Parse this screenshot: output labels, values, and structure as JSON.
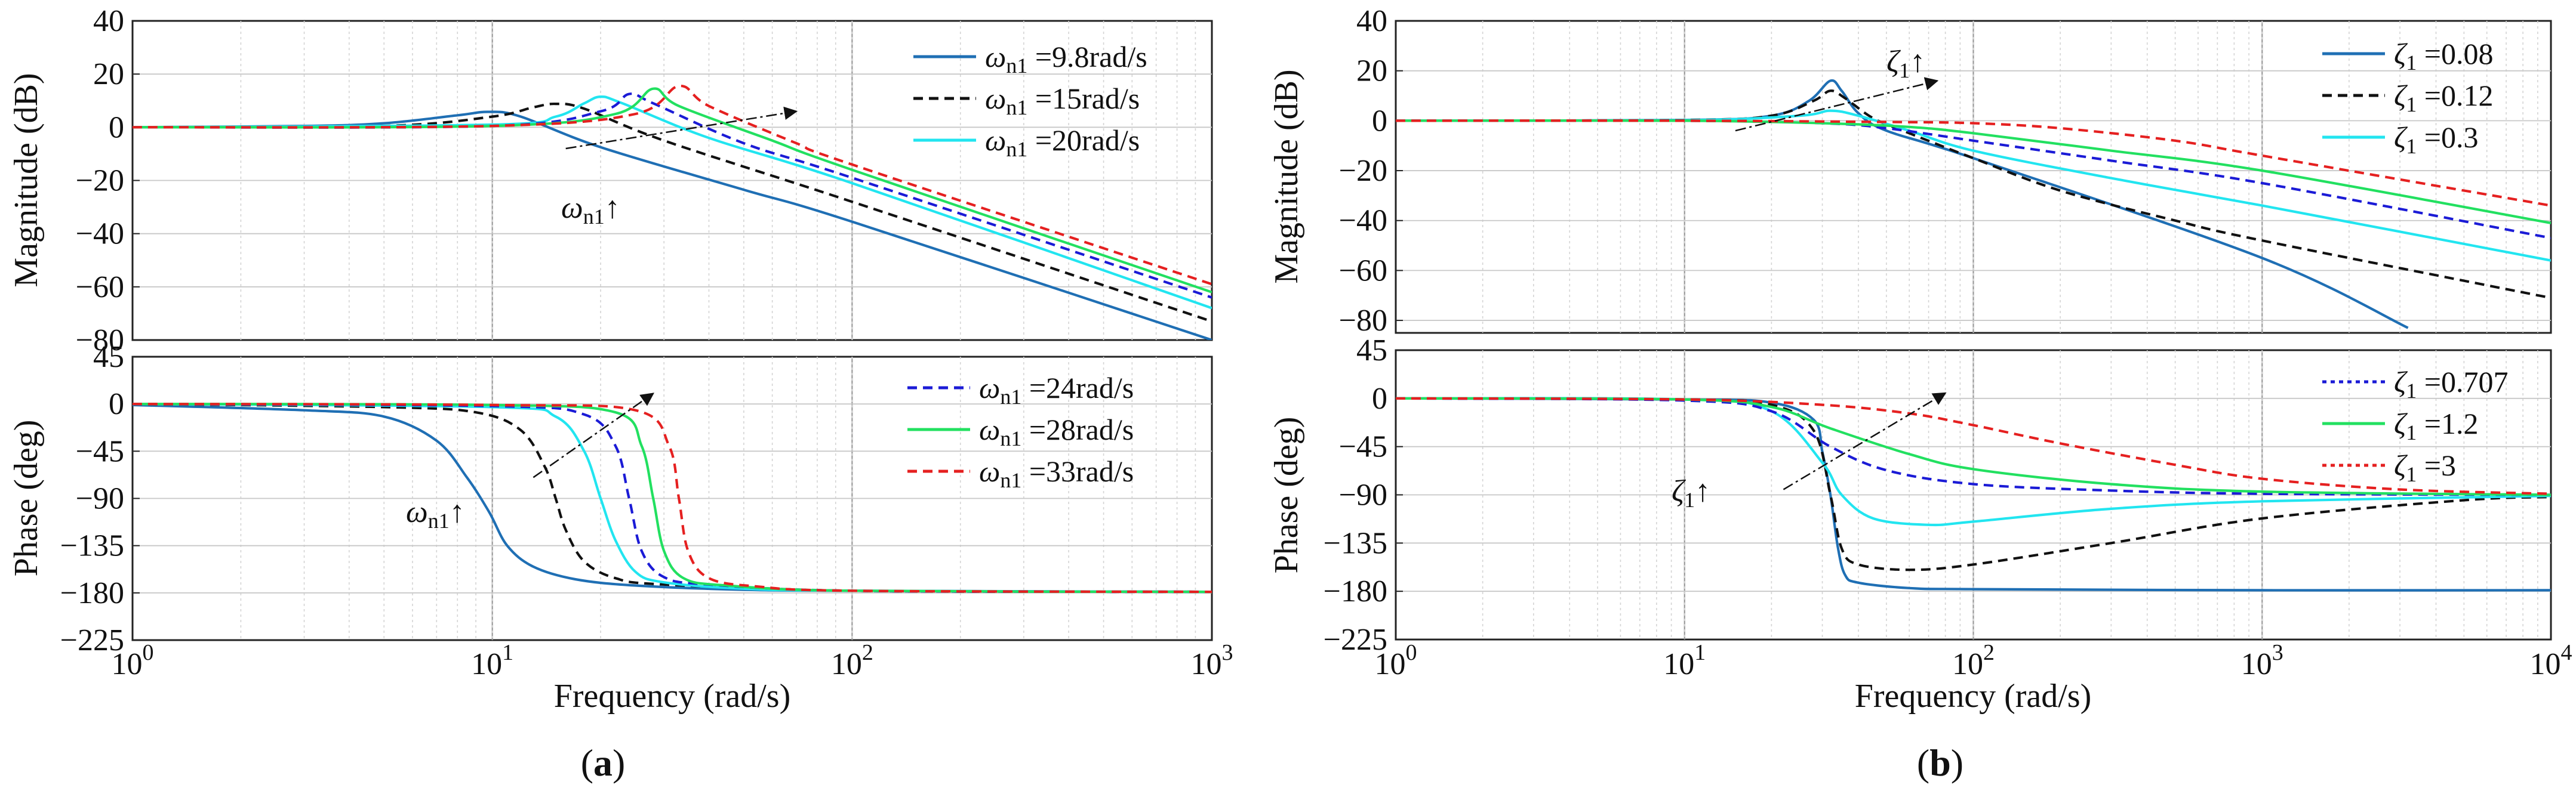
{
  "panels": [
    {
      "id": "a",
      "caption_letter": "a",
      "xlabel": "Frequency  (rad/s)",
      "x_tick_labels": [
        {
          "base": "10",
          "exp": "0"
        },
        {
          "base": "10",
          "exp": "1"
        },
        {
          "base": "10",
          "exp": "2"
        },
        {
          "base": "10",
          "exp": "3"
        }
      ],
      "magnitude_ylabel": "Magnitude (dB)",
      "phase_ylabel": "Phase (deg)",
      "magnitude_annotation": {
        "symbol": "ω",
        "sub": "n1",
        "arrow": "↑"
      },
      "phase_annotation": {
        "symbol": "ω",
        "sub": "n1",
        "arrow": "↑"
      }
    },
    {
      "id": "b",
      "caption_letter": "b",
      "xlabel": "Frequency  (rad/s)",
      "x_tick_labels": [
        {
          "base": "10",
          "exp": "0"
        },
        {
          "base": "10",
          "exp": "1"
        },
        {
          "base": "10",
          "exp": "2"
        },
        {
          "base": "10",
          "exp": "3"
        },
        {
          "base": "10",
          "exp": "4"
        }
      ],
      "magnitude_ylabel": "Magnitude (dB)",
      "phase_ylabel": "Phase (deg)",
      "magnitude_annotation": {
        "symbol": "ζ",
        "sub": "1",
        "arrow": "↑"
      },
      "phase_annotation": {
        "symbol": "ζ",
        "sub": "1",
        "arrow": "↑"
      }
    }
  ],
  "legends": {
    "a_mag": [
      {
        "symbol": "ω",
        "sub": "n1",
        "rest": " =9.8rad/s",
        "color": "#1f6fb4",
        "dash": "solid"
      },
      {
        "symbol": "ω",
        "sub": "n1",
        "rest": " =15rad/s",
        "color": "#111111",
        "dash": "dashed"
      },
      {
        "symbol": "ω",
        "sub": "n1",
        "rest": " =20rad/s",
        "color": "#22e5f0",
        "dash": "solid"
      }
    ],
    "a_ph": [
      {
        "symbol": "ω",
        "sub": "n1",
        "rest": " =24rad/s",
        "color": "#1b1bd6",
        "dash": "dashed"
      },
      {
        "symbol": "ω",
        "sub": "n1",
        "rest": " =28rad/s",
        "color": "#22e060",
        "dash": "solid"
      },
      {
        "symbol": "ω",
        "sub": "n1",
        "rest": " =33rad/s",
        "color": "#e52020",
        "dash": "dashed"
      }
    ],
    "b_mag": [
      {
        "symbol": "ζ",
        "sub": "1",
        "rest": " =0.08",
        "color": "#1f6fb4",
        "dash": "solid"
      },
      {
        "symbol": "ζ",
        "sub": "1",
        "rest": " =0.12",
        "color": "#111111",
        "dash": "dashed"
      },
      {
        "symbol": "ζ",
        "sub": "1",
        "rest": " =0.3",
        "color": "#22e5f0",
        "dash": "solid"
      }
    ],
    "b_ph": [
      {
        "symbol": "ζ",
        "sub": "1",
        "rest": " =0.707",
        "color": "#1b1bd6",
        "dash": "dotted"
      },
      {
        "symbol": "ζ",
        "sub": "1",
        "rest": " =1.2",
        "color": "#22e060",
        "dash": "solid"
      },
      {
        "symbol": "ζ",
        "sub": "1",
        "rest": " =3",
        "color": "#e52020",
        "dash": "dotted"
      }
    ]
  },
  "chart_data": [
    {
      "id": "a_mag",
      "type": "line",
      "xscale": "log",
      "xlabel": "Frequency  (rad/s)",
      "ylabel": "Magnitude (dB)",
      "xlim": [
        1,
        1000
      ],
      "ylim": [
        -80,
        40
      ],
      "yticks": [
        40,
        20,
        0,
        -20,
        -40,
        -60,
        -80
      ],
      "grid": true,
      "legend_position": "top-right",
      "series": [
        {
          "name": "ωn1 =9.8rad/s",
          "color": "#1f6fb4",
          "dash": "solid",
          "x": [
            1,
            3,
            5,
            8,
            9.8,
            12,
            20,
            50,
            100,
            1000
          ],
          "y": [
            0,
            0.5,
            1.5,
            4.5,
            5.8,
            4,
            -7.5,
            -23.5,
            -35.5,
            -80
          ]
        },
        {
          "name": "ωn1 =15rad/s",
          "color": "#111111",
          "dash": "dashed",
          "x": [
            1,
            5,
            10,
            13,
            15,
            18,
            30,
            100,
            1000
          ],
          "y": [
            0,
            0.5,
            4,
            7.5,
            8.8,
            7,
            -5,
            -28,
            -73
          ]
        },
        {
          "name": "ωn1 =20rad/s",
          "color": "#22e5f0",
          "dash": "solid",
          "x": [
            1,
            10,
            15,
            18,
            20,
            23,
            40,
            100,
            1000
          ],
          "y": [
            0,
            1,
            4,
            9,
            11.5,
            9,
            -4,
            -21,
            -68
          ]
        },
        {
          "name": "ωn1 =24rad/s",
          "color": "#1b1bd6",
          "dash": "dashed",
          "x": [
            1,
            10,
            20,
            24,
            28,
            50,
            100,
            1000
          ],
          "y": [
            0,
            0.5,
            6,
            12.5,
            9,
            -6,
            -19,
            -64
          ]
        },
        {
          "name": "ωn1 =28rad/s",
          "color": "#22e060",
          "dash": "solid",
          "x": [
            1,
            10,
            22,
            28,
            33,
            60,
            100,
            1000
          ],
          "y": [
            0,
            0.5,
            5,
            14.5,
            8,
            -5,
            -16,
            -62
          ]
        },
        {
          "name": "ωn1 =33rad/s",
          "color": "#e52020",
          "dash": "dashed",
          "x": [
            1,
            10,
            25,
            33,
            40,
            70,
            100,
            1000
          ],
          "y": [
            0,
            0.5,
            5,
            15.5,
            8,
            -6,
            -14,
            -59
          ]
        }
      ],
      "annotation": {
        "text": "ωn1↑",
        "arrow_from": [
          16,
          -8
        ],
        "arrow_to": [
          70,
          6
        ]
      }
    },
    {
      "id": "a_ph",
      "type": "line",
      "xscale": "log",
      "xlabel": "Frequency  (rad/s)",
      "ylabel": "Phase (deg)",
      "xlim": [
        1,
        1000
      ],
      "ylim": [
        -225,
        45
      ],
      "yticks": [
        45,
        0,
        -45,
        -90,
        -135,
        -180,
        -225
      ],
      "grid": true,
      "legend_position": "top-right",
      "series": [
        {
          "name": "ωn1 =9.8rad/s",
          "color": "#1f6fb4",
          "dash": "solid",
          "x": [
            1,
            3,
            5,
            7,
            8.5,
            9.8,
            11,
            13,
            17,
            25,
            50,
            100,
            1000
          ],
          "y": [
            -1,
            -6,
            -12,
            -35,
            -70,
            -103,
            -135,
            -155,
            -167,
            -173,
            -177,
            -178,
            -179
          ]
        },
        {
          "name": "ωn1 =15rad/s",
          "color": "#111111",
          "dash": "dashed",
          "x": [
            1,
            5,
            9,
            12,
            14,
            15,
            16,
            18,
            22,
            30,
            100,
            1000
          ],
          "y": [
            0,
            -3,
            -8,
            -25,
            -60,
            -90,
            -120,
            -150,
            -166,
            -172,
            -178,
            -179
          ]
        },
        {
          "name": "ωn1 =20rad/s",
          "color": "#22e5f0",
          "dash": "solid",
          "x": [
            1,
            10,
            15,
            18,
            20,
            22,
            25,
            30,
            50,
            100,
            1000
          ],
          "y": [
            0,
            -3,
            -12,
            -45,
            -90,
            -130,
            -160,
            -170,
            -176,
            -178,
            -179
          ]
        },
        {
          "name": "ωn1 =24rad/s",
          "color": "#1b1bd6",
          "dash": "dashed",
          "x": [
            1,
            10,
            18,
            22,
            24,
            26,
            30,
            40,
            100,
            1000
          ],
          "y": [
            0,
            -2,
            -10,
            -40,
            -90,
            -140,
            -165,
            -172,
            -178,
            -179
          ]
        },
        {
          "name": "ωn1 =28rad/s",
          "color": "#22e060",
          "dash": "solid",
          "x": [
            1,
            10,
            22,
            26,
            28,
            30,
            34,
            45,
            100,
            1000
          ],
          "y": [
            0,
            -1,
            -8,
            -40,
            -90,
            -140,
            -166,
            -173,
            -178,
            -179
          ]
        },
        {
          "name": "ωn1 =33rad/s",
          "color": "#e52020",
          "dash": "dashed",
          "x": [
            1,
            10,
            25,
            31,
            33,
            35,
            40,
            55,
            100,
            1000
          ],
          "y": [
            0,
            -1,
            -6,
            -40,
            -90,
            -140,
            -166,
            -174,
            -178,
            -179
          ]
        }
      ],
      "annotation": {
        "text": "ωn1↑",
        "arrow_from": [
          13,
          -70
        ],
        "arrow_to": [
          28,
          10
        ]
      }
    },
    {
      "id": "b_mag",
      "type": "line",
      "xscale": "log",
      "xlabel": "Frequency  (rad/s)",
      "ylabel": "Magnitude (dB)",
      "xlim": [
        1,
        10000
      ],
      "ylim": [
        -85,
        40
      ],
      "yticks": [
        40,
        20,
        0,
        -20,
        -40,
        -60,
        -80
      ],
      "grid": true,
      "legend_position": "top-right",
      "series": [
        {
          "name": "ζ1 =0.08",
          "color": "#1f6fb4",
          "dash": "solid",
          "x": [
            1,
            10,
            20,
            27,
            32,
            35,
            40,
            50,
            100,
            1000,
            3200
          ],
          "y": [
            0,
            0.3,
            2,
            8,
            16,
            12,
            3,
            -4,
            -15,
            -55,
            -83
          ]
        },
        {
          "name": "ζ1 =0.12",
          "color": "#111111",
          "dash": "dashed",
          "x": [
            1,
            10,
            20,
            28,
            32,
            36,
            45,
            60,
            100,
            200,
            500,
            1000,
            10000
          ],
          "y": [
            0,
            0.3,
            2,
            8,
            12,
            9,
            1,
            -5,
            -15,
            -28,
            -40,
            -48,
            -71
          ]
        },
        {
          "name": "ζ1 =0.3",
          "color": "#22e5f0",
          "dash": "solid",
          "x": [
            1,
            10,
            25,
            32,
            40,
            60,
            100,
            300,
            1000,
            10000
          ],
          "y": [
            0,
            0.2,
            2,
            4,
            2,
            -4,
            -12,
            -23,
            -34,
            -56
          ]
        },
        {
          "name": "ζ1 =0.707",
          "color": "#1b1bd6",
          "dash": "dashed",
          "x": [
            1,
            10,
            30,
            50,
            100,
            300,
            1000,
            10000
          ],
          "y": [
            0,
            0,
            -1,
            -3,
            -8,
            -16,
            -25,
            -47
          ]
        },
        {
          "name": "ζ1 =1.2",
          "color": "#22e060",
          "dash": "solid",
          "x": [
            1,
            10,
            30,
            60,
            100,
            300,
            1000,
            10000
          ],
          "y": [
            0,
            0,
            -1,
            -2.5,
            -5,
            -12,
            -20,
            -41
          ]
        },
        {
          "name": "ζ1 =3",
          "color": "#e52020",
          "dash": "dashed",
          "x": [
            1,
            10,
            50,
            100,
            200,
            500,
            1000,
            10000
          ],
          "y": [
            0,
            0,
            -0.5,
            -1,
            -3,
            -8,
            -14,
            -34
          ]
        }
      ],
      "annotation": {
        "text": "ζ1↑",
        "arrow_from": [
          15,
          -4
        ],
        "arrow_to": [
          75,
          16
        ]
      }
    },
    {
      "id": "b_ph",
      "type": "line",
      "xscale": "log",
      "xlabel": "Frequency  (rad/s)",
      "ylabel": "Phase (deg)",
      "xlim": [
        1,
        10000
      ],
      "ylim": [
        -225,
        45
      ],
      "yticks": [
        45,
        0,
        -45,
        -90,
        -135,
        -180,
        -225
      ],
      "grid": true,
      "legend_position": "top-right",
      "series": [
        {
          "name": "ζ1 =0.08",
          "color": "#1f6fb4",
          "dash": "solid",
          "x": [
            1,
            10,
            20,
            28,
            30,
            32,
            34,
            36,
            40,
            60,
            100,
            1000,
            10000
          ],
          "y": [
            0,
            -1,
            -4,
            -20,
            -50,
            -90,
            -140,
            -165,
            -172,
            -177,
            -178,
            -179,
            -179
          ]
        },
        {
          "name": "ζ1 =0.12",
          "color": "#111111",
          "dash": "dashed",
          "x": [
            1,
            10,
            20,
            28,
            32,
            35,
            40,
            60,
            100,
            300,
            1000,
            5000,
            10000
          ],
          "y": [
            0,
            -1,
            -6,
            -30,
            -90,
            -140,
            -155,
            -160,
            -155,
            -135,
            -112,
            -95,
            -92
          ]
        },
        {
          "name": "ζ1 =0.3",
          "color": "#22e5f0",
          "dash": "solid",
          "x": [
            1,
            10,
            20,
            30,
            35,
            45,
            70,
            100,
            300,
            1000,
            10000
          ],
          "y": [
            0,
            -1,
            -12,
            -60,
            -90,
            -112,
            -118,
            -115,
            -103,
            -96,
            -91
          ]
        },
        {
          "name": "ζ1 =0.707",
          "color": "#1b1bd6",
          "dash": "dashed",
          "x": [
            1,
            10,
            20,
            32,
            50,
            100,
            300,
            1000,
            10000
          ],
          "y": [
            0,
            -2,
            -12,
            -45,
            -67,
            -80,
            -86,
            -89,
            -90
          ]
        },
        {
          "name": "ζ1 =1.2",
          "color": "#22e060",
          "dash": "solid",
          "x": [
            1,
            10,
            20,
            32,
            60,
            100,
            300,
            1000,
            10000
          ],
          "y": [
            0,
            -1,
            -8,
            -28,
            -52,
            -66,
            -80,
            -87,
            -90
          ]
        },
        {
          "name": "ζ1 =3",
          "color": "#e52020",
          "dash": "dashed",
          "x": [
            1,
            10,
            30,
            60,
            100,
            200,
            500,
            1000,
            3000,
            10000
          ],
          "y": [
            0,
            -1,
            -6,
            -14,
            -25,
            -42,
            -62,
            -75,
            -85,
            -89
          ]
        }
      ],
      "annotation": {
        "text": "ζ1↑",
        "arrow_from": [
          22,
          -85
        ],
        "arrow_to": [
          80,
          5
        ]
      }
    }
  ]
}
